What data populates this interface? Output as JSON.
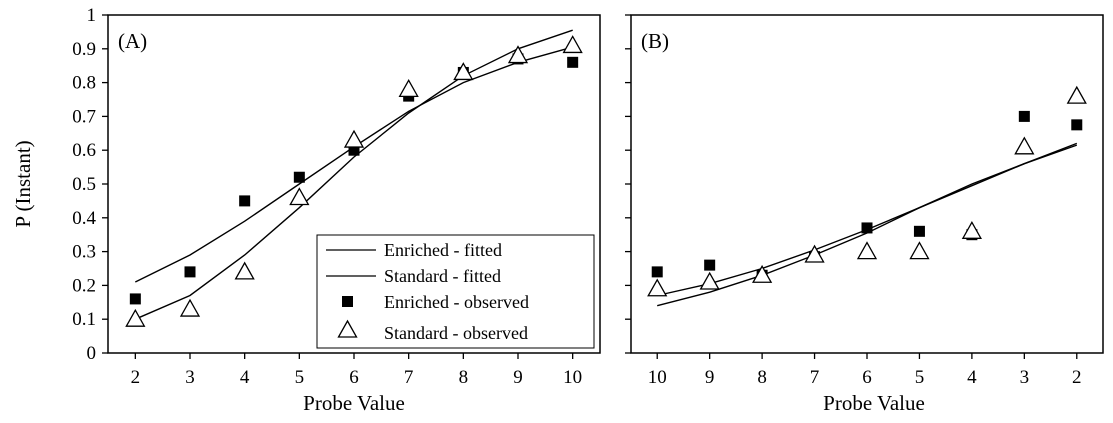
{
  "chart_data": [
    {
      "type": "scatter",
      "panel_label": "(A)",
      "xlabel": "Probe Value",
      "ylabel": "P (Instant)",
      "x_ticks": [
        "2",
        "3",
        "4",
        "5",
        "6",
        "7",
        "8",
        "9",
        "10"
      ],
      "y_ticks": [
        "0",
        "0.1",
        "0.2",
        "0.3",
        "0.4",
        "0.5",
        "0.6",
        "0.7",
        "0.8",
        "0.9",
        "1"
      ],
      "ylim": [
        0,
        1
      ],
      "xlim": [
        1.5,
        10.5
      ],
      "legend_position": "bottom-right",
      "legend": [
        {
          "label": "Enriched - fitted",
          "marker": "line"
        },
        {
          "label": "Standard - fitted",
          "marker": "line"
        },
        {
          "label": "Enriched - observed",
          "marker": "filled-square"
        },
        {
          "label": "Standard - observed",
          "marker": "open-triangle"
        }
      ],
      "series": [
        {
          "name": "Enriched - fitted",
          "kind": "line",
          "x": [
            2,
            3,
            4,
            5,
            6,
            7,
            8,
            9,
            10
          ],
          "y": [
            0.21,
            0.29,
            0.39,
            0.5,
            0.61,
            0.715,
            0.8,
            0.86,
            0.905
          ]
        },
        {
          "name": "Standard - fitted",
          "kind": "line",
          "x": [
            2,
            3,
            4,
            5,
            6,
            7,
            8,
            9,
            10
          ],
          "y": [
            0.1,
            0.17,
            0.29,
            0.43,
            0.58,
            0.71,
            0.82,
            0.9,
            0.955
          ]
        },
        {
          "name": "Enriched - observed",
          "kind": "filled-square",
          "x": [
            2,
            3,
            4,
            5,
            6,
            7,
            8,
            9,
            10
          ],
          "y": [
            0.16,
            0.24,
            0.45,
            0.52,
            0.6,
            0.76,
            0.83,
            0.87,
            0.86
          ]
        },
        {
          "name": "Standard - observed",
          "kind": "open-triangle",
          "x": [
            2,
            3,
            4,
            5,
            6,
            7,
            8,
            9,
            10
          ],
          "y": [
            0.1,
            0.13,
            0.24,
            0.46,
            0.63,
            0.78,
            0.83,
            0.88,
            0.91
          ]
        }
      ]
    },
    {
      "type": "scatter",
      "panel_label": "(B)",
      "xlabel": "Probe Value",
      "x_ticks": [
        "10",
        "9",
        "8",
        "7",
        "6",
        "5",
        "4",
        "3",
        "2"
      ],
      "ylim": [
        0,
        1
      ],
      "xlim": [
        10.5,
        1.5
      ],
      "series": [
        {
          "name": "Enriched - fitted",
          "kind": "line",
          "x": [
            10,
            9,
            8,
            7,
            6,
            5,
            4,
            3,
            2
          ],
          "y": [
            0.17,
            0.205,
            0.25,
            0.305,
            0.365,
            0.43,
            0.5,
            0.56,
            0.62
          ]
        },
        {
          "name": "Standard - fitted",
          "kind": "line",
          "x": [
            10,
            9,
            8,
            7,
            6,
            5,
            4,
            3,
            2
          ],
          "y": [
            0.14,
            0.18,
            0.23,
            0.29,
            0.355,
            0.43,
            0.495,
            0.56,
            0.615
          ]
        },
        {
          "name": "Enriched - observed",
          "kind": "filled-square",
          "x": [
            10,
            9,
            8,
            7,
            6,
            5,
            4,
            3,
            2
          ],
          "y": [
            0.24,
            0.26,
            0.23,
            0.285,
            0.37,
            0.36,
            0.35,
            0.7,
            0.675
          ]
        },
        {
          "name": "Standard - observed",
          "kind": "open-triangle",
          "x": [
            10,
            9,
            8,
            7,
            6,
            5,
            4,
            3,
            2
          ],
          "y": [
            0.19,
            0.21,
            0.23,
            0.29,
            0.3,
            0.3,
            0.36,
            0.61,
            0.76
          ]
        }
      ]
    }
  ]
}
